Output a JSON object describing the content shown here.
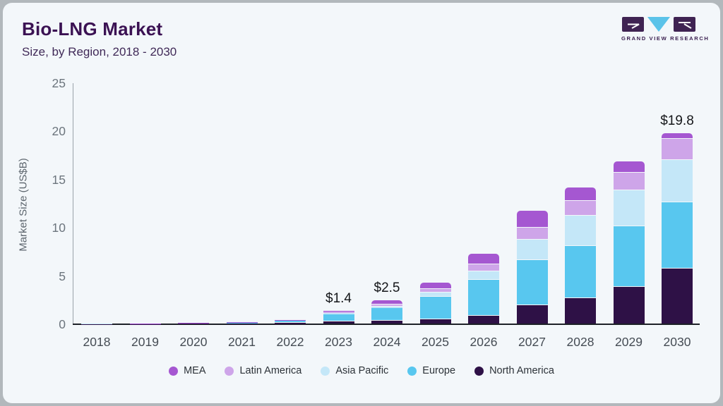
{
  "header": {
    "title": "Bio-LNG Market",
    "subtitle": "Size, by Region, 2018 - 2030"
  },
  "logo": {
    "brand": "GRAND VIEW RESEARCH",
    "mark_dark_color": "#3f2352",
    "mark_blue_color": "#5bc3e9"
  },
  "chart_data": {
    "type": "bar",
    "stacked": true,
    "title": "Bio-LNG Market Size, by Region, 2018 - 2030",
    "xlabel": "",
    "ylabel": "Market Size (US$B)",
    "ylim": [
      0,
      25
    ],
    "yticks": [
      0,
      5,
      10,
      15,
      20,
      25
    ],
    "grid": false,
    "legend_position": "bottom",
    "categories": [
      "2018",
      "2019",
      "2020",
      "2021",
      "2022",
      "2023",
      "2024",
      "2025",
      "2026",
      "2027",
      "2028",
      "2029",
      "2030"
    ],
    "series": [
      {
        "name": "North America",
        "color": "#2e1146",
        "values": [
          0.02,
          0.03,
          0.05,
          0.08,
          0.18,
          0.32,
          0.38,
          0.53,
          0.9,
          1.97,
          2.73,
          3.9,
          5.75
        ]
      },
      {
        "name": "Europe",
        "color": "#58c7ef",
        "values": [
          0.02,
          0.03,
          0.06,
          0.1,
          0.24,
          0.72,
          1.32,
          2.34,
          3.73,
          4.66,
          5.39,
          6.26,
          6.9
        ]
      },
      {
        "name": "Asia Pacific",
        "color": "#c4e7f8",
        "values": [
          0.01,
          0.01,
          0.02,
          0.03,
          0.01,
          0.16,
          0.15,
          0.44,
          0.86,
          2.14,
          3.17,
          3.73,
          4.35
        ]
      },
      {
        "name": "Latin America",
        "color": "#cea5e9",
        "values": [
          0.0,
          0.01,
          0.01,
          0.02,
          0.01,
          0.1,
          0.2,
          0.34,
          0.73,
          1.26,
          1.51,
          1.83,
          2.2
        ]
      },
      {
        "name": "MEA",
        "color": "#a557d1",
        "values": [
          0.0,
          0.01,
          0.01,
          0.02,
          0.01,
          0.1,
          0.45,
          0.68,
          1.1,
          1.75,
          1.4,
          1.15,
          0.6
        ]
      }
    ],
    "totals": [
      0.05,
      0.09,
      0.15,
      0.25,
      0.45,
      1.4,
      2.5,
      4.33,
      7.32,
      11.78,
      14.2,
      16.87,
      19.8
    ],
    "bar_labels": {
      "2023": "$1.4",
      "2024": "$2.5",
      "2030": "$19.8"
    },
    "legend_order": [
      "MEA",
      "Latin America",
      "Asia Pacific",
      "Europe",
      "North America"
    ]
  }
}
